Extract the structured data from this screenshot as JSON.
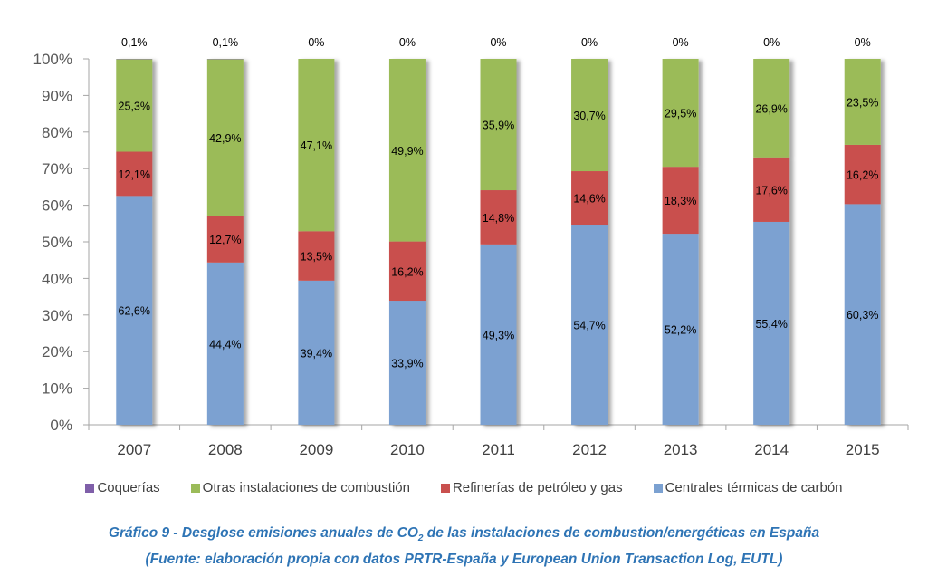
{
  "chart_data": {
    "type": "bar",
    "stacked": true,
    "normalized": true,
    "categories": [
      "2007",
      "2008",
      "2009",
      "2010",
      "2011",
      "2012",
      "2013",
      "2014",
      "2015"
    ],
    "series": [
      {
        "name": "Centrales térmicas de carbón",
        "color": "#7ba1d1",
        "values": [
          62.6,
          44.4,
          39.4,
          33.9,
          49.3,
          54.7,
          52.2,
          55.4,
          60.3
        ],
        "labels": [
          "62,6%",
          "44,4%",
          "39,4%",
          "33,9%",
          "49,3%",
          "54,7%",
          "52,2%",
          "55,4%",
          "60,3%"
        ]
      },
      {
        "name": "Refinerías de petróleo y gas",
        "color": "#c9504e",
        "values": [
          12.1,
          12.7,
          13.5,
          16.2,
          14.8,
          14.6,
          18.3,
          17.6,
          16.2
        ],
        "labels": [
          "12,1%",
          "12,7%",
          "13,5%",
          "16,2%",
          "14,8%",
          "14,6%",
          "18,3%",
          "17,6%",
          "16,2%"
        ]
      },
      {
        "name": "Otras instalaciones de combustión",
        "color": "#9bbb59",
        "values": [
          25.3,
          42.9,
          47.1,
          49.9,
          35.9,
          30.7,
          29.5,
          26.9,
          23.5
        ],
        "labels": [
          "25,3%",
          "42,9%",
          "47,1%",
          "49,9%",
          "35,9%",
          "30,7%",
          "29,5%",
          "26,9%",
          "23,5%"
        ]
      },
      {
        "name": "Coquerías",
        "color": "#7f5fa9",
        "values": [
          0.1,
          0.1,
          0,
          0,
          0,
          0,
          0,
          0,
          0
        ],
        "labels": [
          "0,1%",
          "0,1%",
          "0%",
          "0%",
          "0%",
          "0%",
          "0%",
          "0%",
          "0%"
        ]
      }
    ],
    "yticks": [
      "0%",
      "10%",
      "20%",
      "30%",
      "40%",
      "50%",
      "60%",
      "70%",
      "80%",
      "90%",
      "100%"
    ],
    "ylim": [
      0,
      100
    ],
    "xlabel": "",
    "ylabel": "",
    "grid": false,
    "legend_position": "bottom",
    "legend_order": [
      "Coquerías",
      "Otras instalaciones de combustión",
      "Refinerías de petróleo y gas",
      "Centrales térmicas de carbón"
    ],
    "title": ""
  },
  "legend": [
    {
      "label": "Coquerías",
      "color": "#7f5fa9"
    },
    {
      "label": "Otras instalaciones de combustión",
      "color": "#9bbb59"
    },
    {
      "label": "Refinerías de petróleo y gas",
      "color": "#c9504e"
    },
    {
      "label": "Centrales térmicas de carbón",
      "color": "#7ba1d1"
    }
  ],
  "caption": {
    "line1_before": "Gráfico 9 - Desglose emisiones anuales de CO",
    "line1_sub": "2",
    "line1_after": " de las instalaciones de combustion/energéticas en España",
    "line2": "(Fuente: elaboración propia con datos PRTR-España y European Union Transaction Log, EUTL)"
  }
}
